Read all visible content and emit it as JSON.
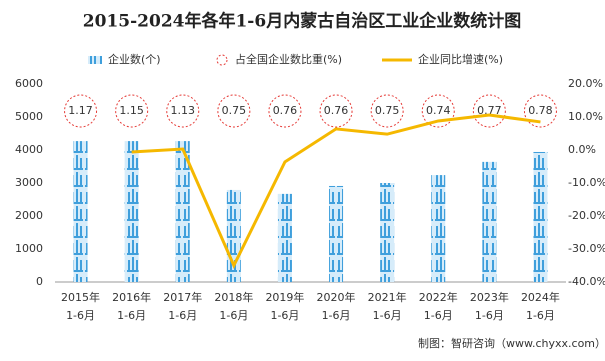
{
  "chart_data": {
    "type": "bar",
    "title": "2015-2024年各年1-6月内蒙古自治区工业企业数统计图",
    "categories": [
      [
        "2015年",
        "1-6月"
      ],
      [
        "2016年",
        "1-6月"
      ],
      [
        "2017年",
        "1-6月"
      ],
      [
        "2018年",
        "1-6月"
      ],
      [
        "2019年",
        "1-6月"
      ],
      [
        "2020年",
        "1-6月"
      ],
      [
        "2021年",
        "1-6月"
      ],
      [
        "2022年",
        "1-6月"
      ],
      [
        "2023年",
        "1-6月"
      ],
      [
        "2024年",
        "1-6月"
      ]
    ],
    "series": [
      {
        "name": "企业数(个)",
        "type": "bar",
        "color": "#4aa8e0",
        "values": [
          4270,
          4270,
          4270,
          2790,
          2670,
          2910,
          3000,
          3240,
          3640,
          3940
        ]
      },
      {
        "name": "占全国企业数比重(%)",
        "type": "bubble-label",
        "color": "#e53935",
        "values": [
          1.17,
          1.15,
          1.13,
          0.75,
          0.76,
          0.76,
          0.75,
          0.74,
          0.77,
          0.78
        ]
      },
      {
        "name": "企业同比增速(%)",
        "type": "line",
        "axis": "y2",
        "color": "#f5b800",
        "values": [
          null,
          -0.6,
          0.3,
          -35,
          -3.6,
          6.4,
          4.8,
          8.8,
          10.6,
          8.5
        ]
      }
    ],
    "ylim": [
      0,
      6000
    ],
    "yticks": [
      0,
      1000,
      2000,
      3000,
      4000,
      5000,
      6000
    ],
    "y2lim": [
      -40,
      20
    ],
    "y2ticks": [
      {
        "value": -40,
        "label": "-40.0%"
      },
      {
        "value": -30,
        "label": "-30.0%"
      },
      {
        "value": -20,
        "label": "-20.0%"
      },
      {
        "value": -10,
        "label": "-10.0%"
      },
      {
        "value": 0,
        "label": "0.0%"
      },
      {
        "value": 10,
        "label": "10.0%"
      },
      {
        "value": 20,
        "label": "20.0%"
      }
    ],
    "source": "制图：智研咨询（www.chyxx.com）"
  }
}
